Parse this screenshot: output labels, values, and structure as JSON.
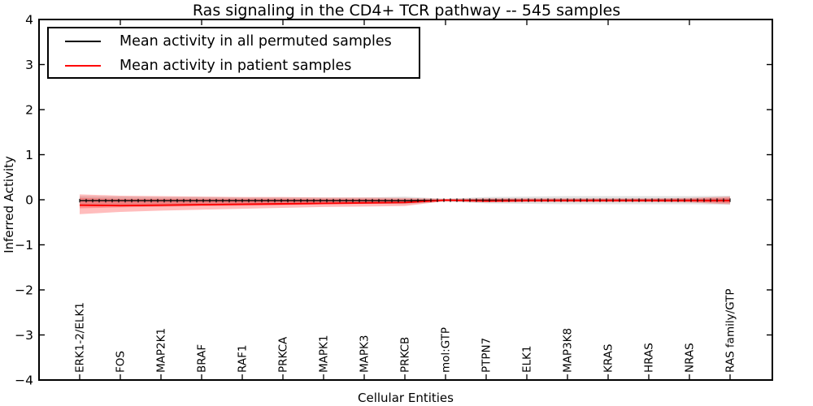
{
  "chart_data": {
    "type": "line",
    "title": "Ras signaling in the CD4+ TCR pathway -- 545 samples",
    "xlabel": "Cellular Entities",
    "ylabel": "Inferred Activity",
    "ylim": [
      -4,
      4
    ],
    "yticks": [
      4,
      3,
      2,
      1,
      0,
      -1,
      -2,
      -3,
      -4
    ],
    "grid": false,
    "legend_position": "upper-left",
    "categories": [
      "ERK1-2/ELK1",
      "FOS",
      "MAP2K1",
      "BRAF",
      "RAF1",
      "PRKCA",
      "MAPK1",
      "MAPK3",
      "PRKCB",
      "mol:GTP",
      "PTPN7",
      "ELK1",
      "MAP3K8",
      "KRAS",
      "HRAS",
      "NRAS",
      "RAS family/GTP"
    ],
    "series": [
      {
        "name": "Mean activity in all permuted samples",
        "color": "#000000",
        "marker": "|",
        "values": [
          -0.02,
          -0.02,
          -0.02,
          -0.02,
          -0.02,
          -0.02,
          -0.02,
          -0.02,
          -0.02,
          -0.01,
          -0.01,
          -0.01,
          -0.01,
          -0.01,
          -0.01,
          -0.01,
          -0.01
        ]
      },
      {
        "name": "Mean activity in patient samples",
        "color": "#ff0000",
        "marker": "none",
        "values": [
          -0.12,
          -0.13,
          -0.12,
          -0.11,
          -0.1,
          -0.09,
          -0.08,
          -0.07,
          -0.06,
          -0.01,
          -0.03,
          -0.02,
          -0.02,
          -0.02,
          -0.02,
          -0.02,
          -0.02
        ]
      }
    ],
    "bands": [
      {
        "name": "permuted-samples-range",
        "color": "#888888",
        "opacity": 0.25,
        "upper": [
          0.08,
          0.07,
          0.06,
          0.06,
          0.05,
          0.05,
          0.05,
          0.05,
          0.07,
          0.02,
          0.06,
          0.07,
          0.08,
          0.08,
          0.08,
          0.08,
          0.09
        ],
        "lower": [
          -0.12,
          -0.11,
          -0.1,
          -0.1,
          -0.09,
          -0.09,
          -0.08,
          -0.08,
          -0.1,
          -0.04,
          -0.08,
          -0.09,
          -0.1,
          -0.1,
          -0.1,
          -0.1,
          -0.11
        ]
      },
      {
        "name": "patient-samples-range-outer",
        "color": "#ff0000",
        "opacity": 0.26,
        "upper": [
          0.12,
          0.09,
          0.08,
          0.07,
          0.06,
          0.06,
          0.05,
          0.05,
          0.04,
          0.02,
          0.03,
          0.03,
          0.03,
          0.03,
          0.03,
          0.04,
          0.07
        ],
        "lower": [
          -0.32,
          -0.27,
          -0.24,
          -0.22,
          -0.2,
          -0.18,
          -0.16,
          -0.15,
          -0.14,
          -0.03,
          -0.05,
          -0.05,
          -0.05,
          -0.05,
          -0.05,
          -0.06,
          -0.1
        ]
      },
      {
        "name": "patient-samples-range-inner",
        "color": "#ff0000",
        "opacity": 0.24,
        "upper": [
          0.04,
          0.02,
          0.02,
          0.02,
          0.02,
          0.02,
          0.015,
          0.015,
          0.01,
          0.01,
          0.02,
          0.02,
          0.02,
          0.02,
          0.02,
          0.02,
          0.04
        ],
        "lower": [
          -0.19,
          -0.17,
          -0.155,
          -0.14,
          -0.13,
          -0.12,
          -0.1,
          -0.09,
          -0.08,
          -0.02,
          -0.04,
          -0.035,
          -0.035,
          -0.035,
          -0.035,
          -0.04,
          -0.07
        ]
      }
    ]
  }
}
